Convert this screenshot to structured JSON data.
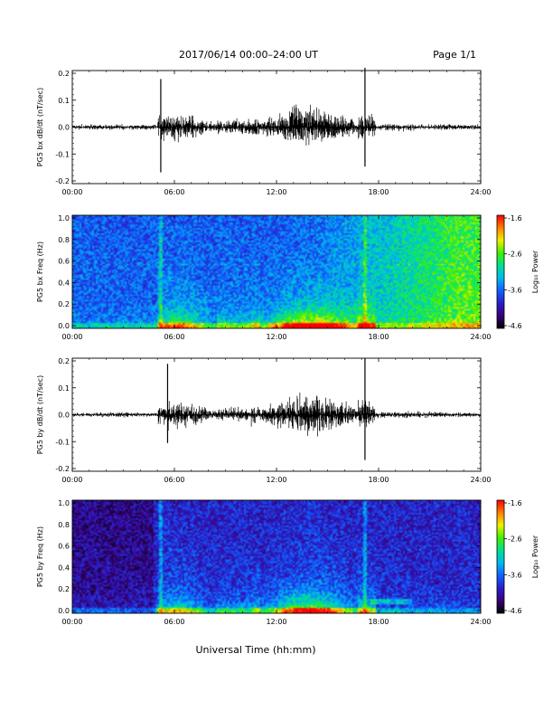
{
  "header": {
    "title": "2017/06/14  00:00–24:00 UT",
    "page": "Page 1/1"
  },
  "footer": {
    "xlabel": "Universal Time (hh:mm)"
  },
  "colorbar": {
    "label": "Log₁₀ Power",
    "ticks": [
      "-1.6",
      "-2.6",
      "-3.6",
      "-4.6"
    ],
    "colors": [
      "#000000",
      "#3a0078",
      "#2a1ec8",
      "#1060ff",
      "#00b8f0",
      "#00e090",
      "#40f000",
      "#f0f000",
      "#ff8000",
      "#ff0000"
    ]
  },
  "chart_data": [
    {
      "type": "line",
      "ylabel": "PG5 bx dB/dt (nT/sec)",
      "xlim": [
        0,
        24
      ],
      "ylim": [
        -0.2,
        0.2
      ],
      "xticks": [
        "00:00",
        "06:00",
        "12:00",
        "18:00",
        "24:00"
      ],
      "yticks": [
        "0.2",
        "0.1",
        "0.0",
        "-0.1",
        "-0.2"
      ],
      "spikes": [
        {
          "t": 5.2,
          "max": 0.17,
          "min": -0.16
        },
        {
          "t": 17.2,
          "max": 0.21,
          "min": -0.14
        }
      ]
    },
    {
      "type": "heatmap",
      "ylabel": "PG5 bx Freq (Hz)",
      "xlim": [
        0,
        24
      ],
      "ylim": [
        0,
        1
      ],
      "zlim": [
        -4.6,
        -1.6
      ],
      "xticks": [
        "00:00",
        "06:00",
        "12:00",
        "18:00",
        "24:00"
      ],
      "yticks": [
        "1.0",
        "0.8",
        "0.6",
        "0.4",
        "0.2",
        "0.0"
      ]
    },
    {
      "type": "line",
      "ylabel": "PG5 by dB/dt (nT/sec)",
      "xlim": [
        0,
        24
      ],
      "ylim": [
        -0.2,
        0.2
      ],
      "xticks": [
        "00:00",
        "06:00",
        "12:00",
        "18:00",
        "24:00"
      ],
      "yticks": [
        "0.2",
        "0.1",
        "0.0",
        "-0.1",
        "-0.2"
      ],
      "spikes": [
        {
          "t": 5.6,
          "max": 0.18,
          "min": -0.1
        },
        {
          "t": 17.2,
          "max": 0.2,
          "min": -0.16
        }
      ]
    },
    {
      "type": "heatmap",
      "ylabel": "PG5 by Freq (Hz)",
      "xlim": [
        0,
        24
      ],
      "ylim": [
        0,
        1
      ],
      "zlim": [
        -4.6,
        -1.6
      ],
      "xticks": [
        "00:00",
        "06:00",
        "12:00",
        "18:00",
        "24:00"
      ],
      "yticks": [
        "1.0",
        "0.8",
        "0.6",
        "0.4",
        "0.2",
        "0.0"
      ]
    }
  ]
}
